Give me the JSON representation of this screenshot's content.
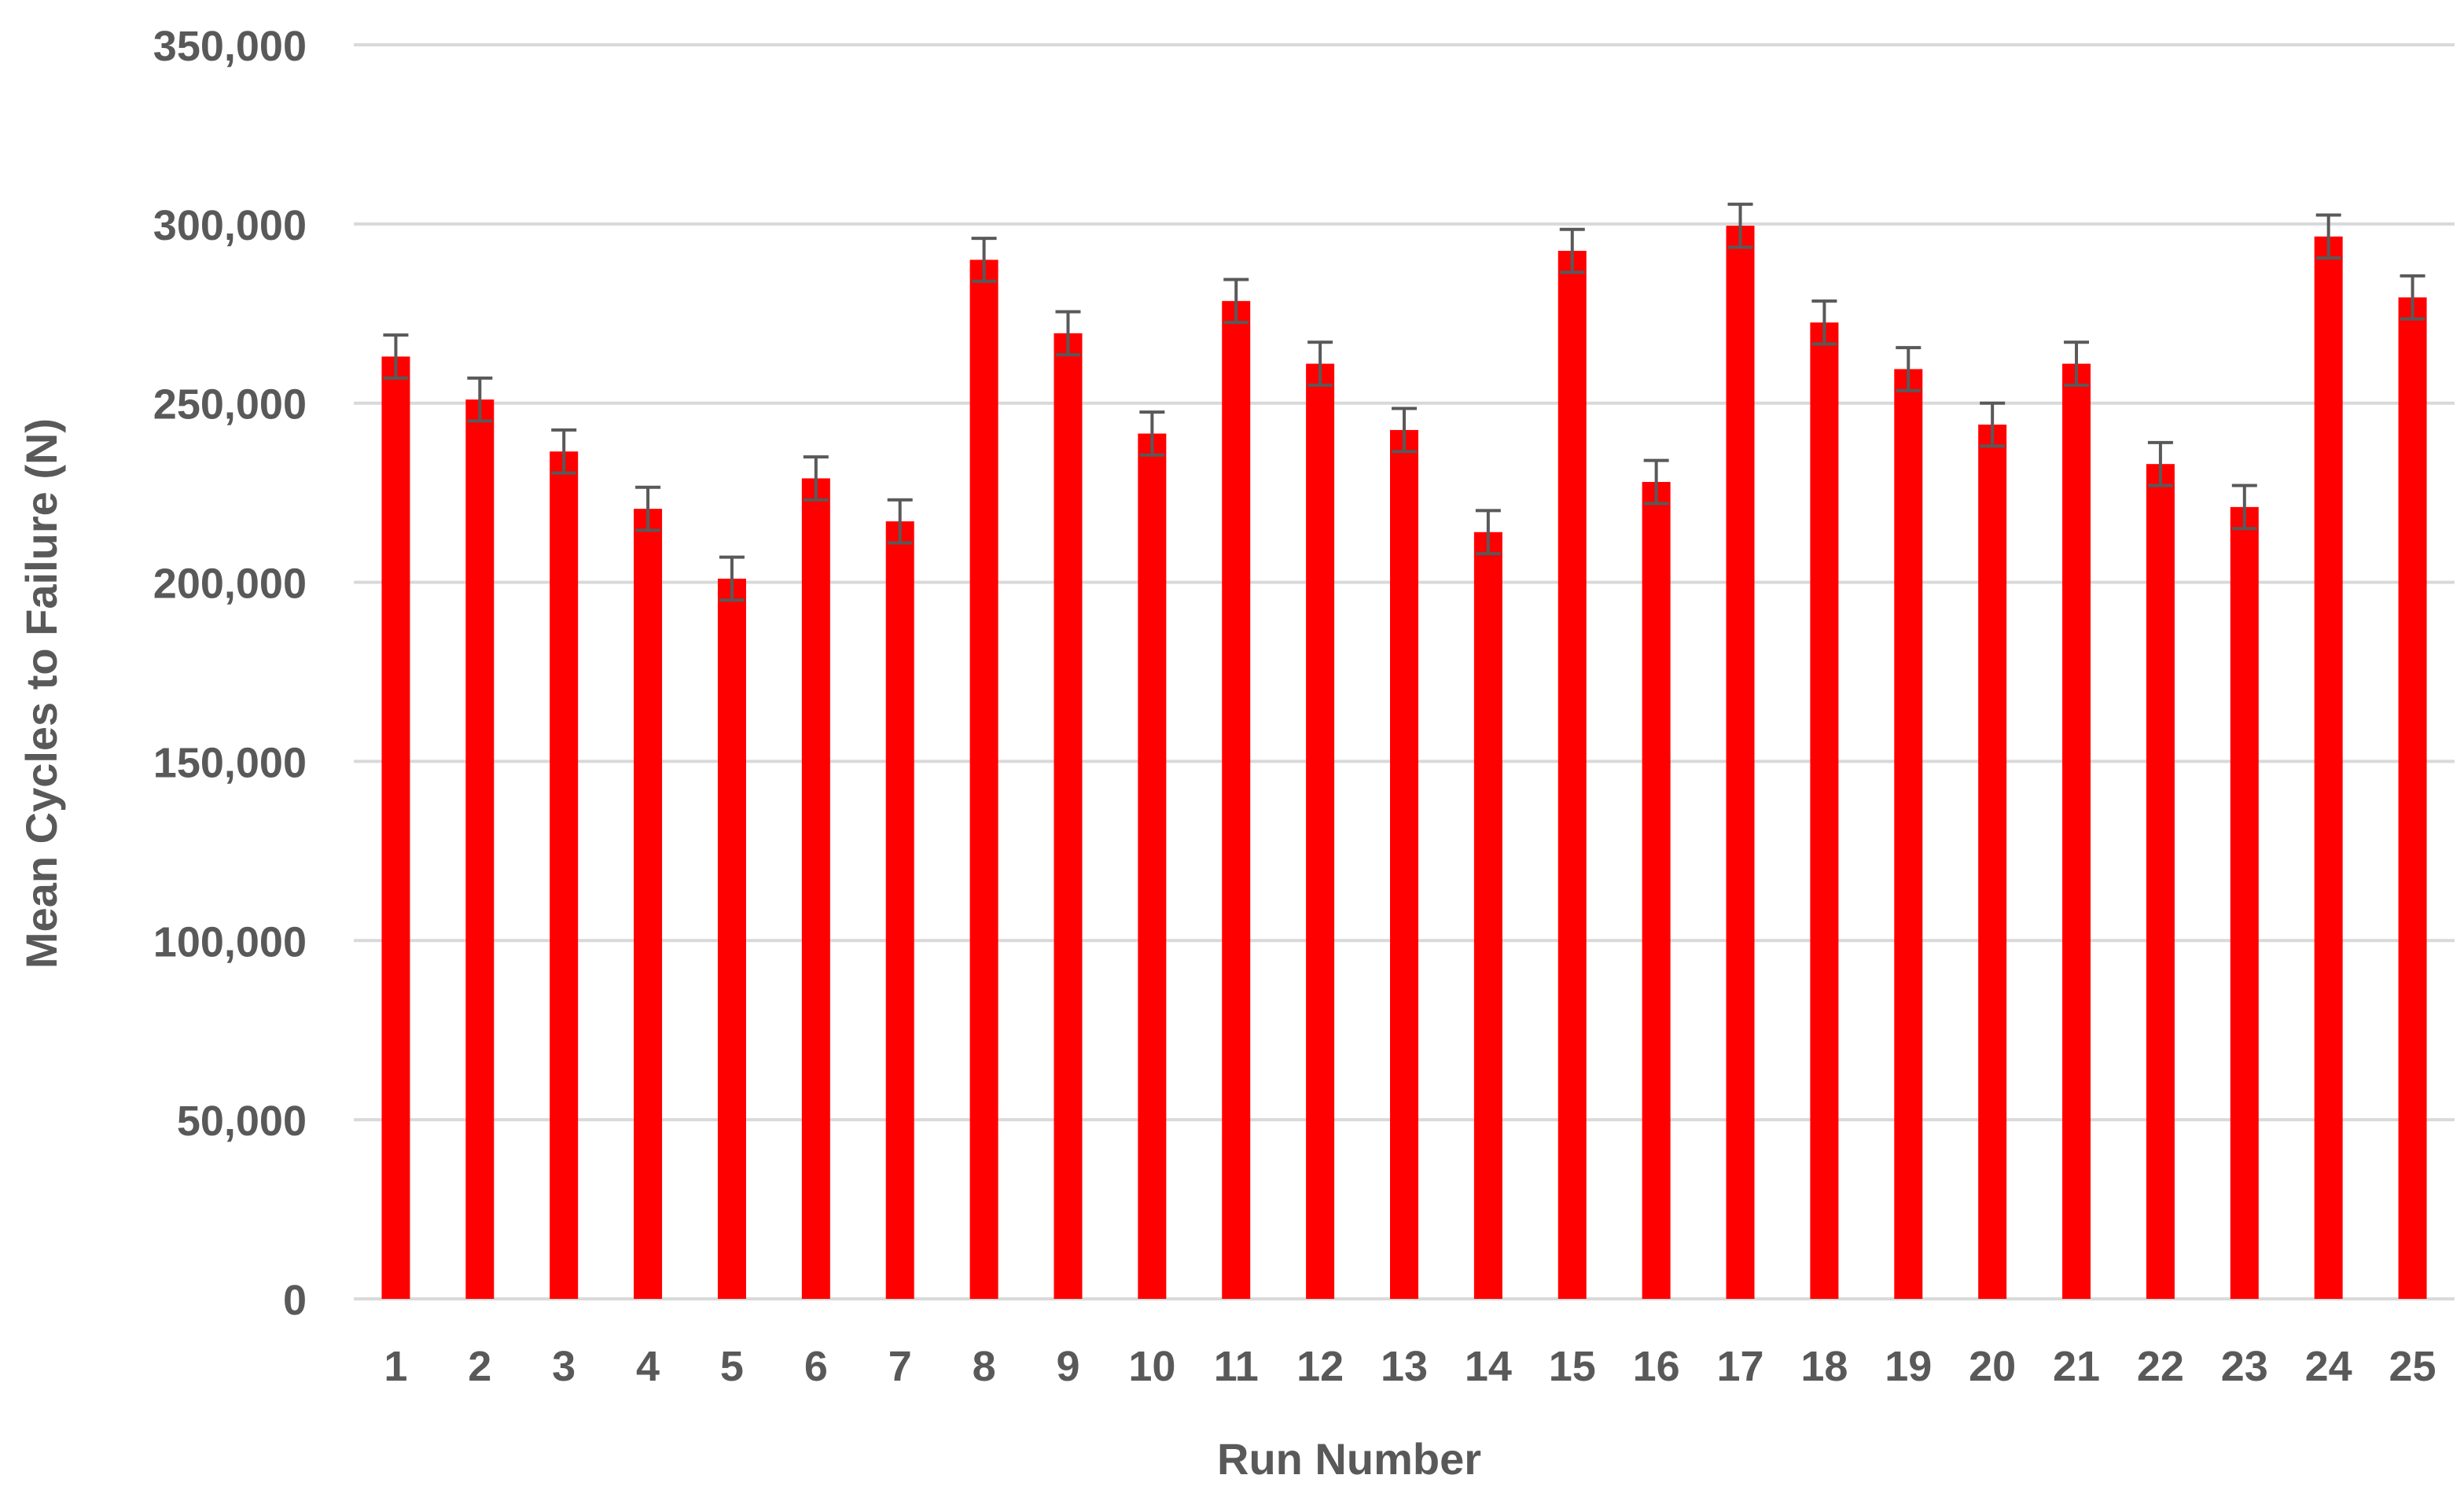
{
  "chart_data": {
    "type": "bar",
    "title": "",
    "xlabel": "Run Number",
    "ylabel": "Mean Cycles to Failure (N)",
    "ylim": [
      0,
      350000
    ],
    "yticks": [
      0,
      50000,
      100000,
      150000,
      200000,
      250000,
      300000,
      350000
    ],
    "ytick_labels": [
      "0",
      "50,000",
      "100,000",
      "150,000",
      "200,000",
      "250,000",
      "300,000",
      "350,000"
    ],
    "grid": "horizontal",
    "legend": "none",
    "categories": [
      "1",
      "2",
      "3",
      "4",
      "5",
      "6",
      "7",
      "8",
      "9",
      "10",
      "11",
      "12",
      "13",
      "14",
      "15",
      "16",
      "17",
      "18",
      "19",
      "20",
      "21",
      "22",
      "23",
      "24",
      "25"
    ],
    "series": [
      {
        "values": [
          263000,
          251000,
          236500,
          220500,
          201000,
          229000,
          217000,
          290000,
          269500,
          241500,
          278500,
          261000,
          242500,
          214000,
          292500,
          228000,
          299500,
          272500,
          259500,
          244000,
          261000,
          233000,
          221000,
          296500,
          279500
        ],
        "error": [
          6000,
          6000,
          6000,
          6000,
          6000,
          6000,
          6000,
          6000,
          6000,
          6000,
          6000,
          6000,
          6000,
          6000,
          6000,
          6000,
          6000,
          6000,
          6000,
          6000,
          6000,
          6000,
          6000,
          6000,
          6000
        ]
      }
    ],
    "colors": {
      "bar": "#ff0000",
      "error_bar": "#595959",
      "grid": "#d9d9d9",
      "text": "#595959"
    }
  }
}
